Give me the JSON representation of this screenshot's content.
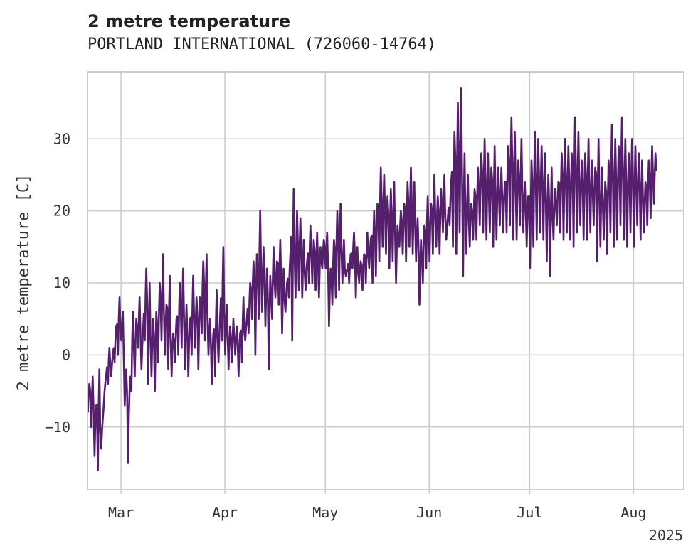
{
  "header": {
    "title": "2 metre temperature",
    "subtitle": "PORTLAND INTERNATIONAL (726060-14764)"
  },
  "colors": {
    "series": "#561f6e",
    "grid": "#cccccc",
    "frame": "#cccccc"
  },
  "chart_data": {
    "type": "line",
    "title": "2 metre temperature",
    "subtitle": "PORTLAND INTERNATIONAL (726060-14764)",
    "xlabel": "",
    "ylabel": "2 metre temperature [C]",
    "x_axis_year_label": "2025",
    "xlim": [
      "2025-02-19",
      "2025-08-16"
    ],
    "ylim": [
      -18.7,
      39.3
    ],
    "yticks": [
      -10,
      0,
      10,
      20,
      30
    ],
    "xticks": [
      {
        "date": "2025-03-01",
        "label": "Mar"
      },
      {
        "date": "2025-04-01",
        "label": "Apr"
      },
      {
        "date": "2025-05-01",
        "label": "May"
      },
      {
        "date": "2025-06-01",
        "label": "Jun"
      },
      {
        "date": "2025-07-01",
        "label": "Jul"
      },
      {
        "date": "2025-08-01",
        "label": "Aug"
      }
    ],
    "grid": true,
    "legend": "none",
    "series": [
      {
        "x": [
          "2025-02-19",
          "2025-02-20",
          "2025-02-21",
          "2025-02-22",
          "2025-02-23",
          "2025-02-24",
          "2025-02-25",
          "2025-02-26",
          "2025-02-27",
          "2025-02-28",
          "2025-03-01",
          "2025-03-02",
          "2025-03-03",
          "2025-03-04",
          "2025-03-05",
          "2025-03-06",
          "2025-03-07",
          "2025-03-08",
          "2025-03-09",
          "2025-03-10",
          "2025-03-11",
          "2025-03-12",
          "2025-03-13",
          "2025-03-14",
          "2025-03-15",
          "2025-03-16",
          "2025-03-17",
          "2025-03-18",
          "2025-03-19",
          "2025-03-20",
          "2025-03-21",
          "2025-03-22",
          "2025-03-23",
          "2025-03-24",
          "2025-03-25",
          "2025-03-26",
          "2025-03-27",
          "2025-03-28",
          "2025-03-29",
          "2025-03-30",
          "2025-03-31",
          "2025-04-01",
          "2025-04-02",
          "2025-04-03",
          "2025-04-04",
          "2025-04-05",
          "2025-04-06",
          "2025-04-07",
          "2025-04-08",
          "2025-04-09",
          "2025-04-10",
          "2025-04-11",
          "2025-04-12",
          "2025-04-13",
          "2025-04-14",
          "2025-04-15",
          "2025-04-16",
          "2025-04-17",
          "2025-04-18",
          "2025-04-19",
          "2025-04-20",
          "2025-04-21",
          "2025-04-22",
          "2025-04-23",
          "2025-04-24",
          "2025-04-25",
          "2025-04-26",
          "2025-04-27",
          "2025-04-28",
          "2025-04-29",
          "2025-04-30",
          "2025-05-01",
          "2025-05-02",
          "2025-05-03",
          "2025-05-04",
          "2025-05-05",
          "2025-05-06",
          "2025-05-07",
          "2025-05-08",
          "2025-05-09",
          "2025-05-10",
          "2025-05-11",
          "2025-05-12",
          "2025-05-13",
          "2025-05-14",
          "2025-05-15",
          "2025-05-16",
          "2025-05-17",
          "2025-05-18",
          "2025-05-19",
          "2025-05-20",
          "2025-05-21",
          "2025-05-22",
          "2025-05-23",
          "2025-05-24",
          "2025-05-25",
          "2025-05-26",
          "2025-05-27",
          "2025-05-28",
          "2025-05-29",
          "2025-05-30",
          "2025-05-31",
          "2025-06-01",
          "2025-06-02",
          "2025-06-03",
          "2025-06-04",
          "2025-06-05",
          "2025-06-06",
          "2025-06-07",
          "2025-06-08",
          "2025-06-09",
          "2025-06-10",
          "2025-06-11",
          "2025-06-12",
          "2025-06-13",
          "2025-06-14",
          "2025-06-15",
          "2025-06-16",
          "2025-06-17",
          "2025-06-18",
          "2025-06-19",
          "2025-06-20",
          "2025-06-21",
          "2025-06-22",
          "2025-06-23",
          "2025-06-24",
          "2025-06-25",
          "2025-06-26",
          "2025-06-27",
          "2025-06-28",
          "2025-06-29",
          "2025-06-30",
          "2025-07-01",
          "2025-07-02",
          "2025-07-03",
          "2025-07-04",
          "2025-07-05",
          "2025-07-06",
          "2025-07-07",
          "2025-07-08",
          "2025-07-09",
          "2025-07-10",
          "2025-07-11",
          "2025-07-12",
          "2025-07-13",
          "2025-07-14",
          "2025-07-15",
          "2025-07-16",
          "2025-07-17",
          "2025-07-18",
          "2025-07-19",
          "2025-07-20",
          "2025-07-21",
          "2025-07-22",
          "2025-07-23",
          "2025-07-24",
          "2025-07-25",
          "2025-07-26",
          "2025-07-27",
          "2025-07-28",
          "2025-07-29",
          "2025-07-30",
          "2025-07-31",
          "2025-08-01",
          "2025-08-02",
          "2025-08-03",
          "2025-08-04",
          "2025-08-05",
          "2025-08-06",
          "2025-08-07",
          "2025-08-08",
          "2025-08-09",
          "2025-08-10",
          "2025-08-11",
          "2025-08-12",
          "2025-08-13",
          "2025-08-14",
          "2025-08-15",
          "2025-08-16"
        ],
        "y_max": [
          -4,
          -3,
          -7,
          -2,
          -9,
          -3,
          1,
          0,
          4,
          8,
          6,
          -2,
          -5,
          6,
          5,
          8,
          3,
          12,
          10,
          5,
          6,
          10,
          14,
          7,
          11,
          3,
          5,
          10,
          12,
          7,
          5,
          11,
          8,
          8,
          13,
          14,
          5,
          3,
          9,
          5,
          15,
          7,
          4,
          5,
          4,
          3,
          8,
          5,
          10,
          13,
          14,
          20,
          15,
          12,
          11,
          15,
          13,
          16,
          12,
          10,
          14,
          23,
          20,
          19,
          16,
          13,
          18,
          16,
          17,
          15,
          16,
          17,
          12,
          16,
          20,
          21,
          16,
          12,
          14,
          17,
          15,
          13,
          14,
          17,
          16,
          20,
          21,
          26,
          25,
          22,
          23,
          24,
          18,
          20,
          21,
          24,
          26,
          24,
          19,
          16,
          18,
          22,
          21,
          25,
          22,
          23,
          25,
          19,
          24,
          31,
          35,
          37,
          28,
          25,
          21,
          23,
          26,
          28,
          30,
          28,
          26,
          29,
          26,
          26,
          24,
          29,
          33,
          31,
          27,
          30,
          24,
          22,
          27,
          31,
          30,
          29,
          28,
          25,
          26,
          23,
          24,
          28,
          30,
          29,
          28,
          33,
          31,
          27,
          28,
          30,
          27,
          26,
          30,
          26,
          24,
          27,
          32,
          30,
          29,
          33,
          30,
          28,
          30,
          29,
          28,
          27,
          24,
          27,
          29,
          28
        ],
        "y_min": [
          -8,
          -10,
          -14,
          -16,
          -13,
          -5,
          -4,
          -3,
          -1,
          0,
          2,
          -7,
          -15,
          -5,
          -3,
          1,
          -2,
          2,
          -4,
          -3,
          -5,
          -1,
          2,
          0,
          -2,
          -3,
          -1,
          0,
          1,
          -2,
          -3,
          0,
          1,
          -2,
          3,
          2,
          0,
          -4,
          -3,
          -1,
          2,
          0,
          -2,
          -1,
          0,
          -3,
          -1,
          2,
          3,
          5,
          0,
          5,
          6,
          4,
          -2,
          5,
          8,
          7,
          3,
          6,
          8,
          2,
          8,
          9,
          8,
          9,
          10,
          10,
          9,
          8,
          12,
          12,
          4,
          7,
          8,
          9,
          10,
          11,
          10,
          12,
          8,
          10,
          9,
          10,
          12,
          10,
          11,
          13,
          15,
          14,
          12,
          13,
          10,
          15,
          14,
          13,
          15,
          14,
          13,
          7,
          10,
          12,
          13,
          14,
          15,
          14,
          17,
          16,
          18,
          15,
          14,
          17,
          11,
          14,
          15,
          16,
          16,
          18,
          17,
          16,
          17,
          15,
          16,
          18,
          17,
          17,
          18,
          16,
          16,
          18,
          17,
          15,
          12,
          15,
          16,
          17,
          16,
          13,
          11,
          16,
          18,
          17,
          16,
          17,
          16,
          15,
          17,
          18,
          16,
          16,
          17,
          18,
          13,
          15,
          16,
          14,
          17,
          15,
          16,
          18,
          16,
          15,
          17,
          15,
          18,
          16,
          17,
          18,
          19,
          21
        ]
      }
    ]
  }
}
